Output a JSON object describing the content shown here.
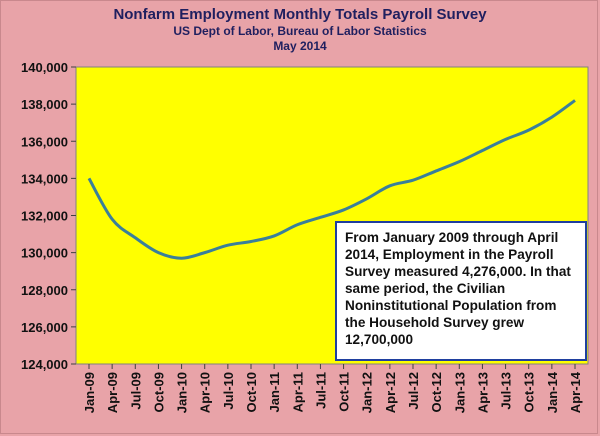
{
  "chart_data": {
    "type": "line",
    "title": "Nonfarm Employment Monthly Totals Payroll Survey",
    "subtitle": "US Dept of Labor, Bureau of Labor Statistics",
    "subtitle2": "May 2014",
    "xlabel": "",
    "ylabel": "",
    "ylim": [
      124000,
      140000
    ],
    "yticks": [
      124000,
      126000,
      128000,
      130000,
      132000,
      134000,
      136000,
      138000,
      140000
    ],
    "ytick_labels": [
      "124,000",
      "126,000",
      "128,000",
      "130,000",
      "132,000",
      "134,000",
      "136,000",
      "138,000",
      "140,000"
    ],
    "xtick_labels": [
      "Jan-09",
      "Apr-09",
      "Jul-09",
      "Oct-09",
      "Jan-10",
      "Apr-10",
      "Jul-10",
      "Oct-10",
      "Jan-11",
      "Apr-11",
      "Jul-11",
      "Oct-11",
      "Jan-12",
      "Apr-12",
      "Jul-12",
      "Oct-12",
      "Jan-13",
      "Apr-13",
      "Jul-13",
      "Oct-13",
      "Jan-14",
      "Apr-14"
    ],
    "x": [
      "Jan-09",
      "Apr-09",
      "Jul-09",
      "Oct-09",
      "Jan-10",
      "Apr-10",
      "Jul-10",
      "Oct-10",
      "Jan-11",
      "Apr-11",
      "Jul-11",
      "Oct-11",
      "Jan-12",
      "Apr-12",
      "Jul-12",
      "Oct-12",
      "Jan-13",
      "Apr-13",
      "Jul-13",
      "Oct-13",
      "Jan-14",
      "Apr-14"
    ],
    "series": [
      {
        "values": [
          134000,
          131800,
          130800,
          130000,
          129700,
          130000,
          130400,
          130600,
          130900,
          131500,
          131900,
          132300,
          132900,
          133600,
          133900,
          134400,
          134900,
          135500,
          136100,
          136600,
          137300,
          138200
        ]
      }
    ],
    "grid": false,
    "legend": "none",
    "annotation": "From January 2009 through April 2014, Employment in the Payroll Survey measured 4,276,000.  In that same period, the Civilian Noninstitutional Population from the Household Survey grew 12,700,000"
  },
  "colors": {
    "background": "#e8a3a8",
    "plot_area": "#ffff00",
    "line": "#3a7f9a",
    "title": "#1f1f5f",
    "annotation_border": "#1f3f9f"
  }
}
